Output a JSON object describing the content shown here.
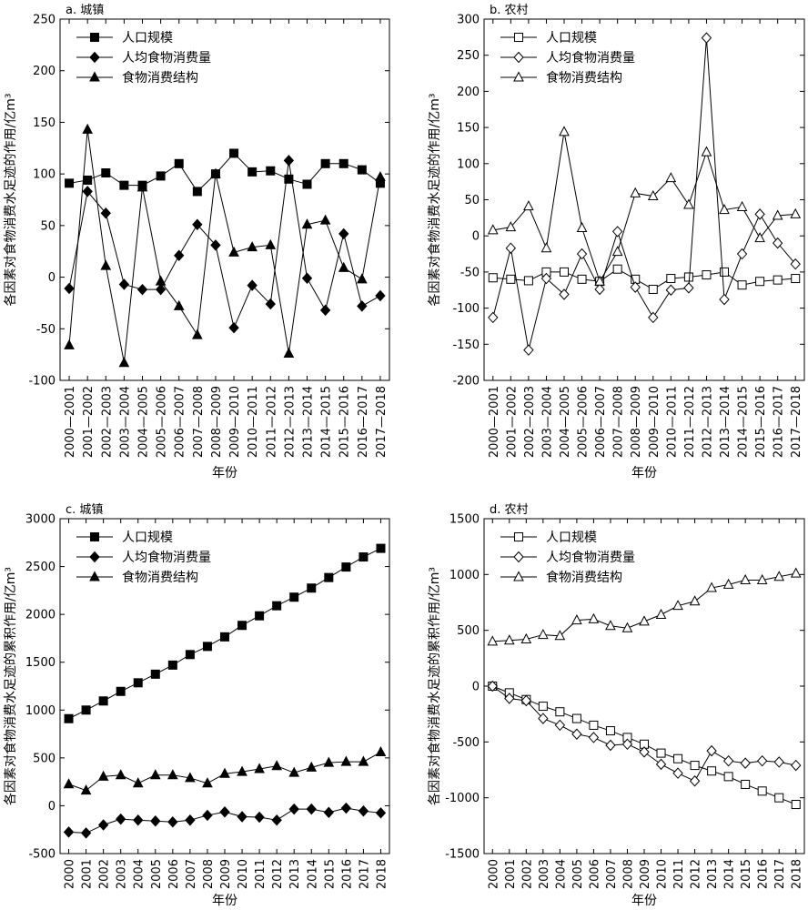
{
  "chart_data": [
    {
      "type": "line",
      "title": "a. 城镇",
      "xlabel": "年份",
      "ylabel": "各因素对食物消费水足迹的作用/亿m³",
      "ylim": [
        -100,
        250
      ],
      "yticks": [
        -100,
        -50,
        0,
        50,
        100,
        150,
        200,
        250
      ],
      "categories": [
        "2000—2001",
        "2001—2002",
        "2002—2003",
        "2003—2004",
        "2004—2005",
        "2005—2006",
        "2006—2007",
        "2007—2008",
        "2008—2009",
        "2009—2010",
        "2010—2011",
        "2011—2012",
        "2012—2013",
        "2013—2014",
        "2014—2015",
        "2015—2016",
        "2016—2017",
        "2017—2018"
      ],
      "legend_position": "top-left",
      "series": [
        {
          "name": "人口规模",
          "marker": "square",
          "filled": true,
          "values": [
            91,
            94,
            101,
            89,
            89,
            98,
            110,
            83,
            100,
            120,
            102,
            103,
            95,
            90,
            110,
            110,
            104,
            91
          ]
        },
        {
          "name": "人均食物消费量",
          "marker": "diamond",
          "filled": true,
          "values": [
            -11,
            83,
            62,
            -7,
            -12,
            -12,
            21,
            51,
            31,
            -49,
            -8,
            -26,
            113,
            -1,
            -32,
            42,
            -28,
            -18
          ]
        },
        {
          "name": "食物消费结构",
          "marker": "triangle",
          "filled": true,
          "values": [
            -66,
            143,
            11,
            -83,
            87,
            -4,
            -28,
            -56,
            100,
            24,
            29,
            31,
            -74,
            51,
            55,
            9,
            -2,
            97
          ]
        }
      ]
    },
    {
      "type": "line",
      "title": "b. 农村",
      "xlabel": "年份",
      "ylabel": "各因素对食物消费水足迹的作用/亿m³",
      "ylim": [
        -200,
        300
      ],
      "yticks": [
        -200,
        -150,
        -100,
        -50,
        0,
        50,
        100,
        150,
        200,
        250,
        300
      ],
      "categories": [
        "2000—2001",
        "2001—2002",
        "2002—2003",
        "2003—2004",
        "2004—2005",
        "2005—2006",
        "2006—2007",
        "2007—2008",
        "2008—2009",
        "2009—2010",
        "2010—2011",
        "2011—2012",
        "2012—2013",
        "2013—2014",
        "2014—2015",
        "2015—2016",
        "2016—2017",
        "2017—2018"
      ],
      "legend_position": "top-left",
      "series": [
        {
          "name": "人口规模",
          "marker": "square",
          "filled": false,
          "values": [
            -58,
            -60,
            -62,
            -50,
            -50,
            -60,
            -63,
            -46,
            -60,
            -74,
            -59,
            -57,
            -54,
            -50,
            -68,
            -63,
            -61,
            -59
          ]
        },
        {
          "name": "人均食物消费量",
          "marker": "diamond",
          "filled": false,
          "values": [
            -113,
            -17,
            -158,
            -59,
            -81,
            -25,
            -74,
            6,
            -71,
            -113,
            -75,
            -72,
            274,
            -88,
            -25,
            30,
            -10,
            -39
          ]
        },
        {
          "name": "食物消费结构",
          "marker": "triangle",
          "filled": false,
          "values": [
            8,
            12,
            41,
            -17,
            144,
            11,
            -63,
            -22,
            59,
            55,
            80,
            43,
            116,
            36,
            40,
            -3,
            28,
            30
          ]
        }
      ]
    },
    {
      "type": "line",
      "title": "c. 城镇",
      "xlabel": "年份",
      "ylabel": "各因素对食物消费水足迹的累积作用/亿m³",
      "ylim": [
        -500,
        3000
      ],
      "yticks": [
        -500,
        0,
        500,
        1000,
        1500,
        2000,
        2500,
        3000
      ],
      "categories": [
        "2000",
        "2001",
        "2002",
        "2003",
        "2004",
        "2005",
        "2006",
        "2007",
        "2008",
        "2009",
        "2010",
        "2011",
        "2012",
        "2013",
        "2014",
        "2015",
        "2016",
        "2017",
        "2018"
      ],
      "legend_position": "top-left",
      "series": [
        {
          "name": "人口规模",
          "marker": "square",
          "filled": true,
          "values": [
            910,
            1000,
            1095,
            1195,
            1285,
            1375,
            1470,
            1580,
            1665,
            1765,
            1885,
            1985,
            2090,
            2180,
            2275,
            2385,
            2495,
            2600,
            2690
          ]
        },
        {
          "name": "人均食物消费量",
          "marker": "diamond",
          "filled": true,
          "values": [
            -275,
            -285,
            -200,
            -140,
            -150,
            -160,
            -170,
            -150,
            -100,
            -65,
            -115,
            -120,
            -150,
            -35,
            -35,
            -70,
            -25,
            -55,
            -75
          ]
        },
        {
          "name": "食物消费结构",
          "marker": "triangle",
          "filled": true,
          "values": [
            225,
            160,
            305,
            320,
            235,
            320,
            320,
            290,
            235,
            335,
            355,
            385,
            415,
            345,
            400,
            450,
            460,
            460,
            560
          ]
        }
      ]
    },
    {
      "type": "line",
      "title": "d. 农村",
      "xlabel": "年份",
      "ylabel": "各因素对食物消费水足迹的累积作用/亿m³",
      "ylim": [
        -1500,
        1500
      ],
      "yticks": [
        -1500,
        -1000,
        -500,
        0,
        500,
        1000,
        1500
      ],
      "categories": [
        "2000",
        "2001",
        "2002",
        "2003",
        "2004",
        "2005",
        "2006",
        "2007",
        "2008",
        "2009",
        "2010",
        "2011",
        "2012",
        "2013",
        "2014",
        "2015",
        "2016",
        "2017",
        "2018"
      ],
      "legend_position": "top-left",
      "series": [
        {
          "name": "人口规模",
          "marker": "square",
          "filled": false,
          "values": [
            0,
            -60,
            -120,
            -180,
            -230,
            -290,
            -350,
            -400,
            -460,
            -520,
            -600,
            -650,
            -710,
            -760,
            -810,
            -880,
            -940,
            -1000,
            -1060
          ]
        },
        {
          "name": "人均食物消费量",
          "marker": "diamond",
          "filled": false,
          "values": [
            0,
            -110,
            -130,
            -290,
            -350,
            -430,
            -460,
            -530,
            -520,
            -590,
            -700,
            -780,
            -850,
            -580,
            -670,
            -690,
            -670,
            -680,
            -710
          ]
        },
        {
          "name": "食物消费结构",
          "marker": "triangle",
          "filled": false,
          "values": [
            400,
            410,
            420,
            460,
            450,
            590,
            600,
            540,
            520,
            580,
            640,
            720,
            760,
            880,
            910,
            950,
            950,
            980,
            1010
          ]
        }
      ]
    }
  ]
}
